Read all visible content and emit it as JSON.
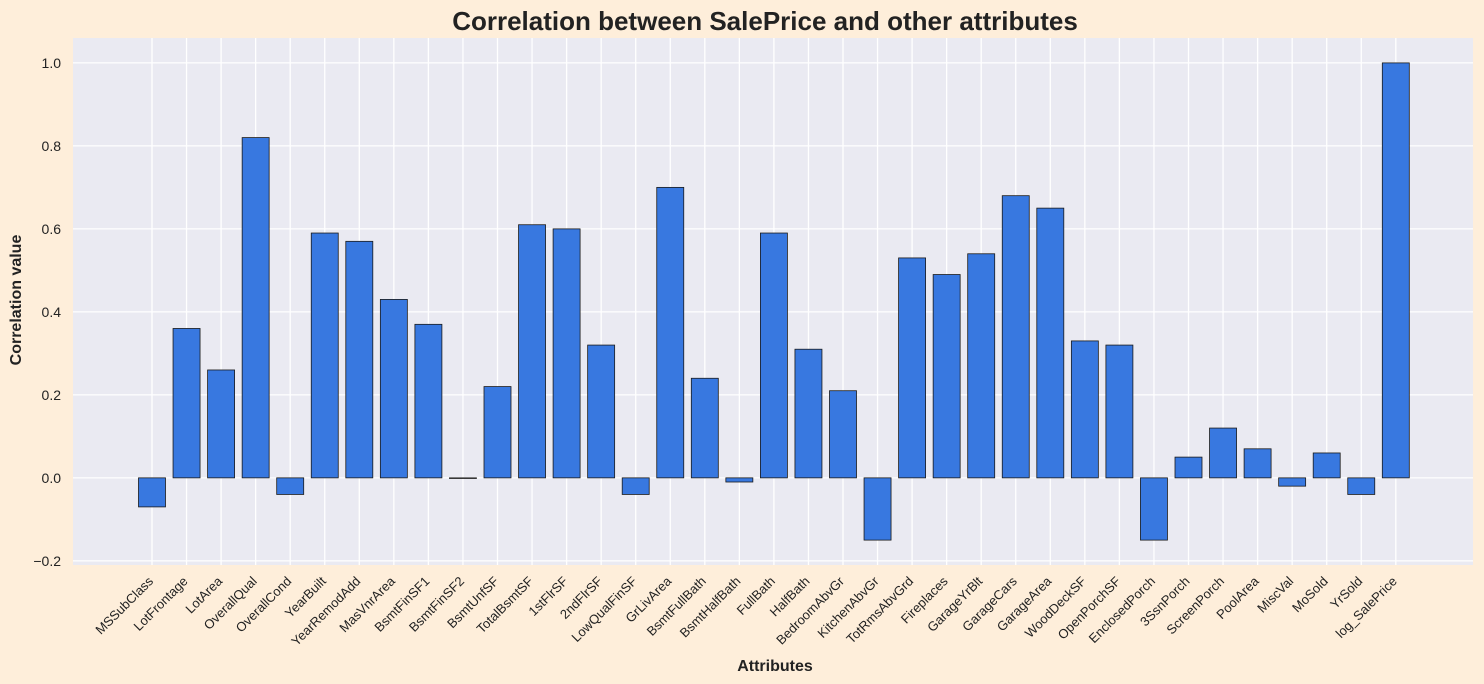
{
  "chart_data": {
    "type": "bar",
    "title": "Correlation between SalePrice and other attributes",
    "xlabel": "Attributes",
    "ylabel": "Correlation value",
    "ylim": [
      -0.21,
      1.06
    ],
    "yticks": [
      -0.2,
      0.0,
      0.2,
      0.4,
      0.6,
      0.8,
      1.0
    ],
    "ytick_labels": [
      "−0.2",
      "0.0",
      "0.2",
      "0.4",
      "0.6",
      "0.8",
      "1.0"
    ],
    "grid": true,
    "colors": {
      "page_background": "#feeeda",
      "plot_background": "#eaeaf2",
      "grid": "#ffffff",
      "bar": "#3878e0",
      "bar_edge": "#1a1a1a"
    },
    "categories": [
      "MSSubClass",
      "LotFrontage",
      "LotArea",
      "OverallQual",
      "OverallCond",
      "YearBuilt",
      "YearRemodAdd",
      "MasVnrArea",
      "BsmtFinSF1",
      "BsmtFinSF2",
      "BsmtUnfSF",
      "TotalBsmtSF",
      "1stFlrSF",
      "2ndFlrSF",
      "LowQualFinSF",
      "GrLivArea",
      "BsmtFullBath",
      "BsmtHalfBath",
      "FullBath",
      "HalfBath",
      "BedroomAbvGr",
      "KitchenAbvGr",
      "TotRmsAbvGrd",
      "Fireplaces",
      "GarageYrBlt",
      "GarageCars",
      "GarageArea",
      "WoodDeckSF",
      "OpenPorchSF",
      "EnclosedPorch",
      "3SsnPorch",
      "ScreenPorch",
      "PoolArea",
      "MiscVal",
      "MoSold",
      "YrSold",
      "log_SalePrice"
    ],
    "values": [
      -0.07,
      0.36,
      0.26,
      0.82,
      -0.04,
      0.59,
      0.57,
      0.43,
      0.37,
      0.0,
      0.22,
      0.61,
      0.6,
      0.32,
      -0.04,
      0.7,
      0.24,
      -0.01,
      0.59,
      0.31,
      0.21,
      -0.15,
      0.53,
      0.49,
      0.54,
      0.68,
      0.65,
      0.33,
      0.32,
      -0.15,
      0.05,
      0.12,
      0.07,
      -0.02,
      0.06,
      -0.04,
      1.0
    ]
  }
}
